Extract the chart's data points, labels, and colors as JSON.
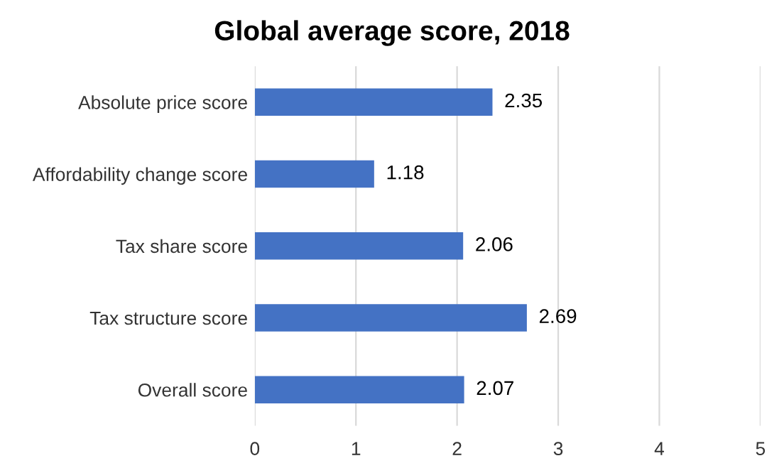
{
  "chart_data": {
    "type": "bar",
    "orientation": "horizontal",
    "title": "Global average score, 2018",
    "categories": [
      "Absolute price score",
      "Affordability change score",
      "Tax share score",
      "Tax structure score",
      "Overall score"
    ],
    "values": [
      2.35,
      1.18,
      2.06,
      2.69,
      2.07
    ],
    "color": "#4472c4",
    "xlim": [
      0,
      5
    ],
    "xticks": [
      0,
      1,
      2,
      3,
      4,
      5
    ],
    "grid": "x",
    "data_labels": true,
    "legend": false
  }
}
